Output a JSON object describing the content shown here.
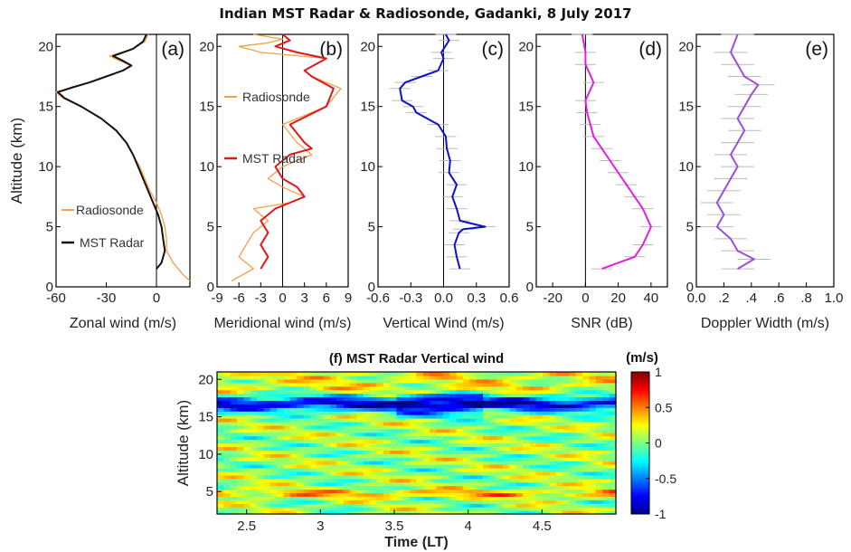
{
  "figure_title": "Indian MST Radar & Radiosonde, Gadanki, 8 July 2017",
  "colors": {
    "radiosonde": "#f2a04a",
    "mst_zonal": "#111111",
    "mst_meridional": "#e01818",
    "vertical": "#1010cc",
    "snr": "#e020e0",
    "doppler": "#9a50dd",
    "error_bars": "#bbbbbb"
  },
  "chart_data": [
    {
      "id": "a",
      "panel_label": "(a)",
      "type": "line",
      "xlabel": "Zonal wind (m/s)",
      "ylabel": "Altitude (km)",
      "xlim": [
        -60,
        20
      ],
      "ylim": [
        0,
        21
      ],
      "xticks": [
        -60,
        -30,
        0
      ],
      "yticks": [
        0,
        5,
        10,
        15,
        20
      ],
      "legend": [
        "Radiosonde",
        "MST Radar"
      ],
      "series": [
        {
          "name": "Radiosonde",
          "color_key": "radiosonde",
          "x": [
            20,
            16,
            10,
            6,
            6,
            5,
            3,
            0,
            -4,
            -7,
            -10,
            -14,
            -18,
            -24,
            -33,
            -45,
            -56,
            -60,
            -51,
            -40,
            -30,
            -20,
            -15,
            -22,
            -28,
            -14,
            -7,
            -5
          ],
          "y": [
            0.5,
            1.0,
            2.0,
            3.0,
            4.0,
            5.0,
            6.0,
            7.0,
            8.0,
            9.0,
            10.0,
            11.0,
            12.0,
            13.0,
            14.0,
            15.0,
            15.7,
            16.2,
            16.6,
            17.0,
            17.5,
            18.0,
            18.4,
            18.8,
            19.2,
            19.8,
            20.4,
            21.0
          ]
        },
        {
          "name": "MST Radar",
          "color_key": "mst_zonal",
          "x": [
            0,
            3,
            4,
            5,
            4,
            3,
            1,
            -2,
            -5,
            -8,
            -11,
            -14,
            -18,
            -24,
            -33,
            -45,
            -55,
            -59,
            -50,
            -40,
            -30,
            -20,
            -15,
            -20,
            -26,
            -14,
            -8,
            -6
          ],
          "y": [
            1.5,
            2.0,
            2.5,
            3.0,
            4.0,
            5.0,
            6.0,
            7.0,
            8.0,
            9.0,
            10.0,
            11.0,
            12.0,
            13.0,
            14.0,
            15.0,
            15.7,
            16.2,
            16.6,
            17.0,
            17.5,
            18.0,
            18.4,
            18.8,
            19.2,
            19.8,
            20.4,
            21.0
          ]
        }
      ]
    },
    {
      "id": "b",
      "panel_label": "(b)",
      "type": "line",
      "xlabel": "Meridional wind (m/s)",
      "xlim": [
        -9,
        9
      ],
      "ylim": [
        0,
        21
      ],
      "xticks": [
        -9,
        -6,
        -3,
        0,
        3,
        6,
        9
      ],
      "yticks": [
        0,
        5,
        10,
        15,
        20
      ],
      "legend": [
        "Radiosonde",
        "MST Radar"
      ],
      "series": [
        {
          "name": "Radiosonde",
          "color_key": "radiosonde",
          "x": [
            -7,
            -4,
            -6,
            -5,
            -4,
            -2,
            -4,
            1,
            3,
            0,
            -2,
            0,
            4,
            2,
            0,
            6,
            8,
            4,
            3,
            6,
            -3,
            -6,
            -2,
            0,
            -4
          ],
          "y": [
            0.5,
            1.5,
            2.5,
            3.5,
            4.5,
            5.5,
            6.5,
            7.0,
            7.5,
            8.3,
            9.0,
            10.0,
            11.0,
            12.0,
            13.5,
            15.0,
            16.5,
            17.5,
            18.0,
            19.0,
            19.5,
            20.0,
            20.3,
            20.6,
            21.0
          ]
        },
        {
          "name": "MST Radar",
          "color_key": "mst_meridional",
          "x": [
            -3,
            -2,
            -3,
            -2,
            -3,
            -1,
            1,
            3,
            2,
            0,
            -1,
            1,
            4,
            3,
            1,
            6,
            7,
            4,
            3,
            6,
            2,
            -1,
            1,
            0
          ],
          "y": [
            1.5,
            2.5,
            3.5,
            4.5,
            5.5,
            6.5,
            7.0,
            7.5,
            8.3,
            9.0,
            10.0,
            11.0,
            11.5,
            12.0,
            13.5,
            15.0,
            16.5,
            17.5,
            18.0,
            19.0,
            19.5,
            20.0,
            20.5,
            21.0
          ]
        }
      ]
    },
    {
      "id": "c",
      "panel_label": "(c)",
      "type": "line",
      "xlabel": "Vertical Wind (m/s)",
      "xlim": [
        -0.6,
        0.6
      ],
      "ylim": [
        0,
        21
      ],
      "xticks": [
        -0.6,
        -0.3,
        0.0,
        0.3,
        0.6
      ],
      "yticks": [
        0,
        5,
        10,
        15,
        20
      ],
      "series": [
        {
          "name": "MST Radar",
          "color_key": "vertical",
          "x": [
            0.15,
            0.12,
            0.1,
            0.14,
            0.18,
            0.38,
            0.15,
            0.12,
            0.08,
            0.12,
            0.05,
            0.06,
            0.03,
            0.02,
            -0.05,
            -0.25,
            -0.28,
            -0.38,
            -0.4,
            -0.35,
            -0.2,
            -0.05,
            0.0,
            -0.02,
            0.05,
            0.02
          ],
          "y": [
            1.5,
            2.5,
            3.5,
            4.5,
            4.8,
            5.0,
            5.5,
            6.5,
            7.5,
            8.5,
            9.5,
            10.5,
            11.5,
            12.5,
            13.5,
            14.5,
            15.0,
            15.5,
            16.5,
            17.0,
            17.5,
            18.0,
            19.0,
            19.5,
            20.5,
            21.0
          ]
        }
      ]
    },
    {
      "id": "d",
      "panel_label": "(d)",
      "type": "line",
      "xlabel": "SNR (dB)",
      "xlim": [
        -30,
        50
      ],
      "ylim": [
        0,
        21
      ],
      "xticks": [
        -20,
        0,
        20,
        40
      ],
      "yticks": [
        0,
        5,
        10,
        15,
        20
      ],
      "series": [
        {
          "name": "MST Radar",
          "color_key": "snr",
          "x": [
            10,
            30,
            35,
            40,
            35,
            30,
            25,
            20,
            15,
            10,
            5,
            3,
            1,
            0,
            5,
            0,
            0,
            -2
          ],
          "y": [
            1.5,
            2.5,
            3.5,
            5.0,
            6.5,
            7.5,
            8.5,
            9.5,
            10.5,
            11.5,
            12.5,
            13.5,
            14.5,
            15.5,
            17.0,
            18.5,
            19.5,
            21.0
          ]
        }
      ]
    },
    {
      "id": "e",
      "panel_label": "(e)",
      "type": "line",
      "xlabel": "Doppler Width (m/s)",
      "xlim": [
        0.0,
        1.0
      ],
      "ylim": [
        0,
        21
      ],
      "xticks": [
        0.0,
        0.2,
        0.4,
        0.6,
        0.8,
        1.0
      ],
      "yticks": [
        0,
        5,
        10,
        15,
        20
      ],
      "series": [
        {
          "name": "MST Radar",
          "color_key": "doppler",
          "x": [
            0.3,
            0.42,
            0.3,
            0.25,
            0.15,
            0.2,
            0.15,
            0.2,
            0.25,
            0.3,
            0.25,
            0.3,
            0.35,
            0.3,
            0.35,
            0.4,
            0.45,
            0.35,
            0.3,
            0.25,
            0.3
          ],
          "y": [
            1.5,
            2.3,
            3.0,
            4.0,
            5.0,
            6.0,
            7.0,
            8.0,
            9.0,
            10.0,
            11.0,
            12.0,
            13.0,
            14.0,
            15.0,
            16.0,
            16.8,
            17.5,
            18.5,
            19.5,
            21.0
          ]
        }
      ]
    },
    {
      "id": "f",
      "panel_label": "(f)",
      "type": "heatmap",
      "title": "(f) MST Radar Vertical wind",
      "xlabel": "Time (LT)",
      "ylabel": "Altitude (km)",
      "colorbar_label": "(m/s)",
      "xlim": [
        2.3,
        5.0
      ],
      "ylim": [
        2,
        21
      ],
      "xticks": [
        2.5,
        3,
        3.5,
        4,
        4.5
      ],
      "yticks": [
        5,
        10,
        15,
        20
      ],
      "clim": [
        -1,
        1
      ],
      "colorbar_ticks": [
        1,
        0.5,
        0,
        -0.5,
        -1
      ],
      "colormap": "jet"
    }
  ]
}
